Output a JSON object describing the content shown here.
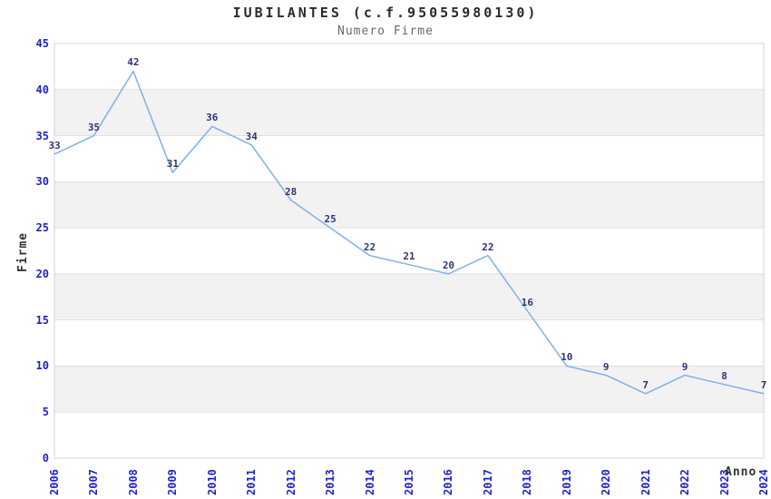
{
  "title": "IUBILANTES (c.f.95055980130)",
  "subtitle": "Numero Firme",
  "chart_data": {
    "type": "line",
    "title": "IUBILANTES (c.f.95055980130)",
    "subtitle": "Numero Firme",
    "x": [
      "2006",
      "2007",
      "2008",
      "2009",
      "2010",
      "2011",
      "2012",
      "2013",
      "2014",
      "2015",
      "2016",
      "2017",
      "2018",
      "2019",
      "2020",
      "2021",
      "2022",
      "2023",
      "2024"
    ],
    "values": [
      33,
      35,
      42,
      31,
      36,
      34,
      28,
      25,
      22,
      21,
      20,
      22,
      16,
      10,
      9,
      7,
      9,
      8,
      7
    ],
    "xlabel": "Anno",
    "ylabel": "Firme",
    "ylim": [
      0,
      45
    ],
    "yticks": [
      0,
      5,
      10,
      15,
      20,
      25,
      30,
      35,
      40,
      45
    ],
    "grid": "horizontal",
    "bands": "alternating-gray",
    "legend": "none",
    "data_labels": true,
    "markers": "none"
  },
  "colors": {
    "line": "#7db1ea",
    "tick_label": "#2222cc",
    "data_label": "#333377",
    "band_fill": "#f2f2f2",
    "grid_line": "#e0e0e0",
    "plot_border": "#d4d4d4",
    "title": "#2b2b2b",
    "subtitle": "#6a6a6a",
    "axis_title": "#333333",
    "background": "#ffffff"
  }
}
